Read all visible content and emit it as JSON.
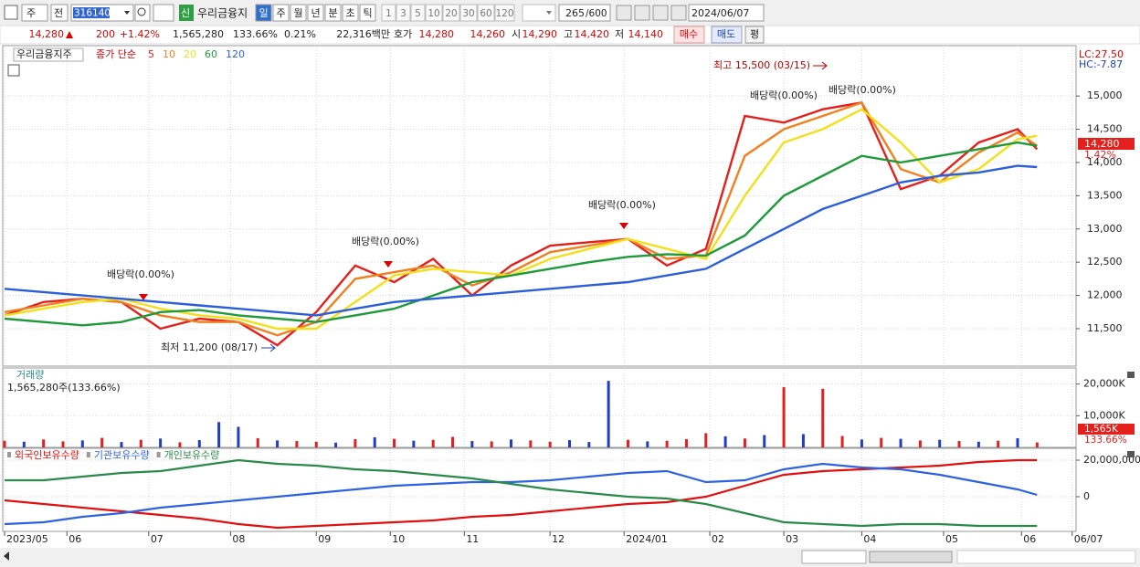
{
  "toolbar": {
    "market": "주",
    "scope": "전",
    "code": "316140",
    "name": "우리금융지",
    "badge": "신",
    "periods": [
      "일",
      "주",
      "월",
      "년",
      "분",
      "초",
      "틱"
    ],
    "intervals": [
      "1",
      "3",
      "5",
      "10",
      "20",
      "30",
      "60",
      "120"
    ],
    "count": "265",
    "max": "/600",
    "date": "2024/06/07"
  },
  "quote": {
    "price": "14,280",
    "change": "200",
    "change_pct": "+1.42%",
    "volume": "1,565,280",
    "volume_ratio": "133.66%",
    "turnover": "0.21%",
    "amount": "22,316백만",
    "bid_ask_label": "호가",
    "ask": "14,280",
    "bid": "14,260",
    "open_label": "시",
    "open": "14,290",
    "high_label": "고",
    "high": "14,420",
    "low_label": "저",
    "low": "14,140",
    "buttons": [
      "매수",
      "매도",
      "평"
    ]
  },
  "chart_data": [
    {
      "type": "line",
      "title": "우리금융지주",
      "subtitle": "종가 단순",
      "lc": "LC:27.50",
      "hc": "HC:-7.87",
      "annotations": [
        "최고 15,500 (03/15)",
        "최저 11,200 (08/17)",
        "배당락(0.00%)",
        "배당락(0.00%)",
        "배당락(0.00%)",
        "배당락(0.00%)",
        "배당락(0.00%)"
      ],
      "last_price_label": "14,280",
      "last_change_label": "1.42%",
      "x": [
        0,
        10,
        20,
        30,
        40,
        50,
        60,
        70,
        80,
        90,
        100,
        110,
        120,
        130,
        140,
        150,
        160,
        170,
        180,
        190,
        200,
        210,
        220,
        230,
        240,
        250,
        260,
        265
      ],
      "xlim": [
        0,
        275
      ],
      "xticks": [
        {
          "value": 0,
          "label": "2023/05"
        },
        {
          "value": 16,
          "label": "06"
        },
        {
          "value": 37,
          "label": "07"
        },
        {
          "value": 58,
          "label": "08"
        },
        {
          "value": 80,
          "label": "09"
        },
        {
          "value": 99,
          "label": "10"
        },
        {
          "value": 118,
          "label": "11"
        },
        {
          "value": 140,
          "label": "12"
        },
        {
          "value": 159,
          "label": "2024/01"
        },
        {
          "value": 181,
          "label": "02"
        },
        {
          "value": 200,
          "label": "03"
        },
        {
          "value": 220,
          "label": "04"
        },
        {
          "value": 241,
          "label": "05"
        },
        {
          "value": 261,
          "label": "06"
        },
        {
          "value": 274,
          "label": "06/07"
        }
      ],
      "ylim": [
        10950,
        15730
      ],
      "yticks": [
        {
          "value": 11500,
          "label": "11,500"
        },
        {
          "value": 12000,
          "label": "12,000"
        },
        {
          "value": 12500,
          "label": "12,500"
        },
        {
          "value": 13000,
          "label": "13,000"
        },
        {
          "value": 13500,
          "label": "13,500"
        },
        {
          "value": 14000,
          "label": "14,000"
        },
        {
          "value": 14500,
          "label": "14,500"
        },
        {
          "value": 15000,
          "label": "15,000"
        }
      ],
      "grid": true,
      "series": [
        {
          "name": "5",
          "color": "#e3201b",
          "values": [
            11700,
            11900,
            11950,
            11900,
            11500,
            11650,
            11600,
            11250,
            11750,
            12450,
            12200,
            12550,
            12000,
            12450,
            12750,
            12800,
            12850,
            12450,
            12700,
            14700,
            14600,
            14800,
            14900,
            13600,
            13800,
            14300,
            14500,
            14200
          ]
        },
        {
          "name": "10",
          "color": "#f08020",
          "values": [
            11750,
            11850,
            11950,
            11900,
            11700,
            11600,
            11600,
            11400,
            11600,
            12250,
            12350,
            12450,
            12150,
            12350,
            12650,
            12750,
            12850,
            12550,
            12600,
            14100,
            14500,
            14700,
            14900,
            13900,
            13700,
            14150,
            14450,
            14250
          ]
        },
        {
          "name": "20",
          "color": "#f2e01a",
          "values": [
            11700,
            11800,
            11900,
            11950,
            11800,
            11700,
            11650,
            11500,
            11500,
            11900,
            12300,
            12400,
            12350,
            12300,
            12550,
            12700,
            12850,
            12700,
            12550,
            13500,
            14300,
            14500,
            14800,
            14300,
            13700,
            13900,
            14350,
            14400
          ]
        },
        {
          "name": "60",
          "color": "#1f9a3a",
          "values": [
            11650,
            11600,
            11550,
            11600,
            11750,
            11780,
            11700,
            11650,
            11600,
            11700,
            11800,
            12000,
            12200,
            12300,
            12400,
            12500,
            12580,
            12620,
            12600,
            12900,
            13500,
            13800,
            14100,
            14000,
            14100,
            14200,
            14300,
            14250
          ]
        },
        {
          "name": "120",
          "color": "#2b5fd8",
          "values": [
            12100,
            12050,
            12000,
            11950,
            11900,
            11850,
            11800,
            11750,
            11700,
            11800,
            11900,
            11950,
            12000,
            12050,
            12100,
            12150,
            12200,
            12300,
            12400,
            12700,
            13000,
            13300,
            13500,
            13700,
            13800,
            13850,
            13950,
            13930
          ]
        }
      ]
    },
    {
      "type": "bar",
      "title": "거래량",
      "subtitle": "1,565,280주(133.66%)",
      "last_label": "1,565K",
      "ratio_label": "133.66%",
      "x": [
        0,
        5,
        10,
        15,
        20,
        25,
        30,
        35,
        40,
        45,
        50,
        55,
        60,
        65,
        70,
        75,
        80,
        85,
        90,
        95,
        100,
        105,
        110,
        115,
        120,
        125,
        130,
        135,
        140,
        145,
        150,
        155,
        160,
        165,
        170,
        175,
        180,
        185,
        190,
        195,
        200,
        205,
        210,
        215,
        220,
        225,
        230,
        235,
        240,
        245,
        250,
        255,
        260,
        265
      ],
      "values": [
        2100,
        1800,
        2500,
        1900,
        2200,
        3000,
        1700,
        2400,
        2800,
        1600,
        2300,
        8000,
        6500,
        2900,
        2200,
        2000,
        1800,
        1500,
        2600,
        3200,
        2700,
        2100,
        2400,
        3300,
        2000,
        1900,
        2500,
        2200,
        1800,
        2300,
        1700,
        21000,
        2400,
        1900,
        2100,
        2600,
        4500,
        3500,
        2800,
        3900,
        19000,
        4200,
        18500,
        3600,
        2500,
        3000,
        2700,
        2200,
        2400,
        2000,
        1800,
        2100,
        2900,
        1565
      ],
      "colors": [
        "#e0211f",
        "#1f3fbf",
        "#e0211f",
        "#e0211f",
        "#1f3fbf",
        "#e0211f",
        "#1f3fbf",
        "#e0211f",
        "#1f3fbf",
        "#e0211f",
        "#1f3fbf",
        "#1f3fbf",
        "#1f3fbf",
        "#e0211f",
        "#1f3fbf",
        "#e0211f",
        "#e0211f",
        "#1f3fbf",
        "#e0211f",
        "#1f3fbf",
        "#e0211f",
        "#1f3fbf",
        "#e0211f",
        "#e0211f",
        "#1f3fbf",
        "#e0211f",
        "#1f3fbf",
        "#e0211f",
        "#e0211f",
        "#1f3fbf",
        "#1f3fbf",
        "#1f3fbf",
        "#e0211f",
        "#1f3fbf",
        "#e0211f",
        "#e0211f",
        "#e0211f",
        "#1f3fbf",
        "#e0211f",
        "#1f3fbf",
        "#e0211f",
        "#1f3fbf",
        "#e0211f",
        "#e0211f",
        "#1f3fbf",
        "#e0211f",
        "#1f3fbf",
        "#e0211f",
        "#1f3fbf",
        "#e0211f",
        "#1f3fbf",
        "#e0211f",
        "#1f3fbf",
        "#e0211f"
      ],
      "ylim": [
        0,
        24500
      ],
      "yticks": [
        {
          "value": 10000,
          "label": "10,000K"
        },
        {
          "value": 20000,
          "label": "20,000K"
        }
      ]
    },
    {
      "type": "line",
      "x": [
        0,
        10,
        20,
        30,
        40,
        50,
        60,
        70,
        80,
        90,
        100,
        110,
        120,
        130,
        140,
        150,
        160,
        170,
        180,
        190,
        200,
        210,
        220,
        230,
        240,
        250,
        260,
        265
      ],
      "ylim": [
        -19000000,
        26000000
      ],
      "yticks": [
        0,
        {
          "value": 20000000,
          "label": "20,000,000"
        }
      ],
      "series": [
        {
          "name": "외국인보유수량",
          "color": "#e01010",
          "values": [
            -2000000,
            -4000000,
            -6000000,
            -8000000,
            -10000000,
            -12000000,
            -15000000,
            -17000000,
            -16000000,
            -15000000,
            -14000000,
            -13000000,
            -11000000,
            -10000000,
            -8000000,
            -6000000,
            -4000000,
            -3000000,
            0,
            6000000,
            12000000,
            14000000,
            15000000,
            16000000,
            17000000,
            19000000,
            20000000,
            20000000
          ]
        },
        {
          "name": "기관보유수량",
          "color": "#2d62e0",
          "values": [
            -15000000,
            -14000000,
            -11000000,
            -9000000,
            -6000000,
            -4000000,
            -2000000,
            0,
            2000000,
            4000000,
            6000000,
            7000000,
            8000000,
            8000000,
            9000000,
            11000000,
            13000000,
            14000000,
            8000000,
            9000000,
            15000000,
            18000000,
            16000000,
            15000000,
            12000000,
            8000000,
            4000000,
            1000000
          ]
        },
        {
          "name": "개인보유수량",
          "color": "#2a8a4a",
          "values": [
            9000000,
            9000000,
            11000000,
            13000000,
            14000000,
            17000000,
            20000000,
            18000000,
            17000000,
            15000000,
            14000000,
            12000000,
            10000000,
            7000000,
            4000000,
            2000000,
            0,
            -1000000,
            -4000000,
            -9000000,
            -14000000,
            -15000000,
            -16000000,
            -15000000,
            -15000000,
            -16000000,
            -16000000,
            -16000000
          ]
        }
      ]
    }
  ]
}
